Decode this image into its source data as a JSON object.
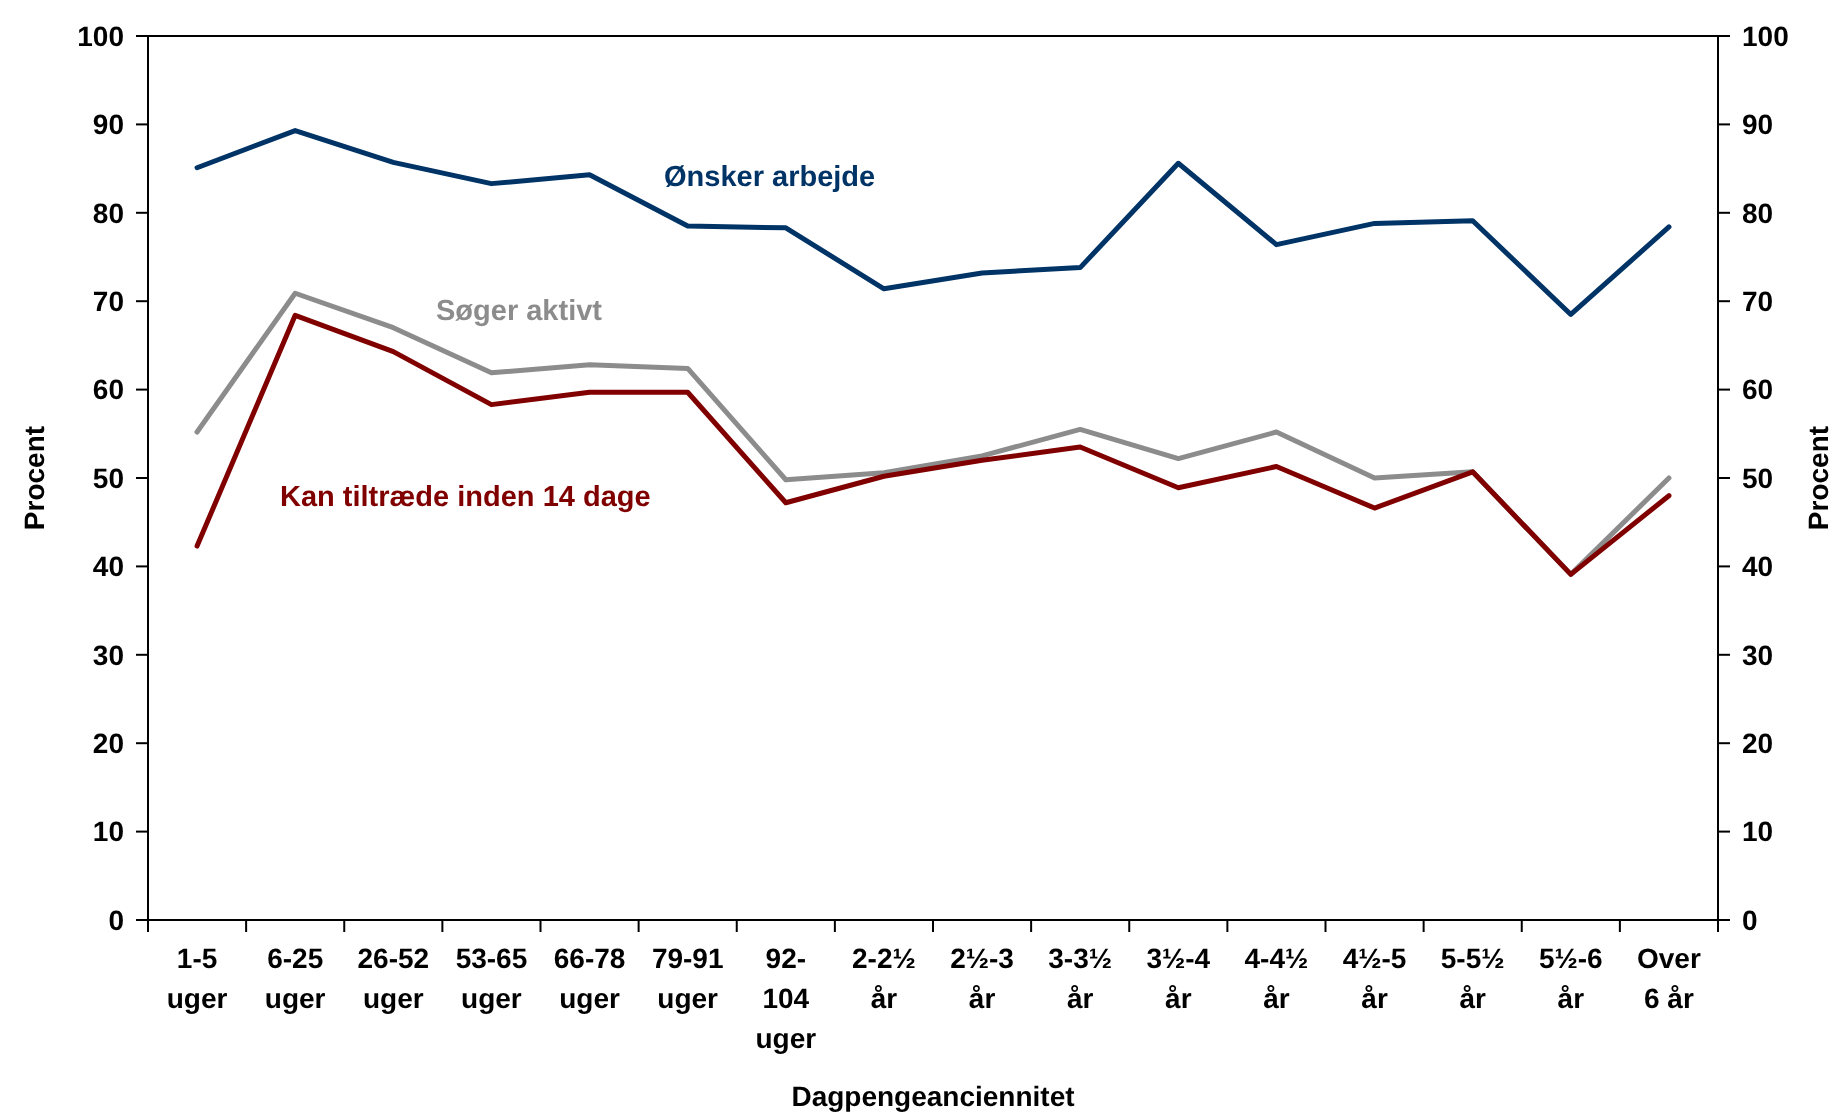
{
  "chart_data": {
    "type": "line",
    "categories": [
      "1-5\nuger",
      "6-25\nuger",
      "26-52\nuger",
      "53-65\nuger",
      "66-78\nuger",
      "79-91\nuger",
      "92-\n104\nuger",
      "2-2½\når",
      "2½-3\når",
      "3-3½\når",
      "3½-4\når",
      "4-4½\når",
      "4½-5\når",
      "5-5½\når",
      "5½-6\når",
      "Over\n6 år"
    ],
    "series": [
      {
        "name": "Ønsker arbejde",
        "color": "#003366",
        "values": [
          85.1,
          89.3,
          85.7,
          83.3,
          84.3,
          78.5,
          78.3,
          71.4,
          73.2,
          73.8,
          85.6,
          76.4,
          78.8,
          79.1,
          68.5,
          78.4
        ]
      },
      {
        "name": "Søger aktivt",
        "color": "#8c8c8c",
        "values": [
          55.2,
          70.9,
          67.0,
          61.9,
          62.8,
          62.4,
          49.8,
          50.6,
          52.5,
          55.5,
          52.2,
          55.2,
          50.0,
          50.7,
          39.1,
          50.0
        ]
      },
      {
        "name": "Kan tiltræde inden 14 dage",
        "color": "#800000",
        "values": [
          42.3,
          68.4,
          64.3,
          58.3,
          59.7,
          59.7,
          47.2,
          50.2,
          52.0,
          53.5,
          48.9,
          51.3,
          46.6,
          50.7,
          39.1,
          48.0
        ]
      }
    ],
    "xlabel": "Dagpengeanciennitet",
    "ylabel": "Procent",
    "y2label": "Procent",
    "ylim": [
      0,
      100
    ],
    "yticks": [
      0,
      10,
      20,
      30,
      40,
      50,
      60,
      70,
      80,
      90,
      100
    ],
    "y2lim": [
      0,
      100
    ],
    "y2ticks": [
      0,
      10,
      20,
      30,
      40,
      50,
      60,
      70,
      80,
      90,
      100
    ]
  }
}
